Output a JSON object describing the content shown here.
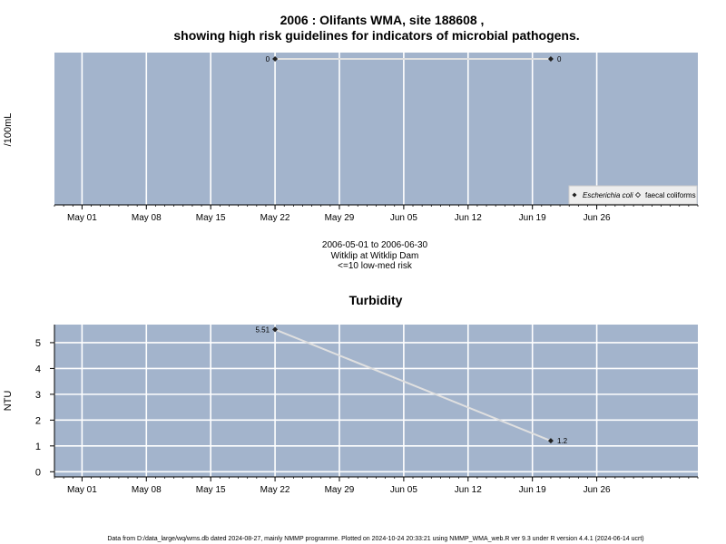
{
  "title_line1": "2006 : Olifants WMA, site 188608 ,",
  "title_line2": "showing high risk guidelines for indicators of microbial pathogens.",
  "chart_data": [
    {
      "type": "line",
      "title": "",
      "ylabel": "/100mL",
      "xlabel": "",
      "x_tick_labels": [
        "May 01",
        "May 08",
        "May 15",
        "May 22",
        "May 29",
        "Jun 05",
        "Jun 12",
        "Jun 19",
        "Jun 26"
      ],
      "x_ticks": [
        "2006-05-01",
        "2006-05-08",
        "2006-05-15",
        "2006-05-22",
        "2006-05-29",
        "2006-06-05",
        "2006-06-12",
        "2006-06-19",
        "2006-06-26"
      ],
      "xlim": [
        "2006-04-28",
        "2006-07-07"
      ],
      "y_tick_labels": [],
      "grid": true,
      "series": [
        {
          "name": "Escherichia coli",
          "x": [
            "2006-05-22",
            "2006-06-21"
          ],
          "y": [
            0,
            0
          ],
          "labels": [
            "0",
            "0"
          ]
        },
        {
          "name": "faecal coliforms",
          "x": [],
          "y": [],
          "labels": []
        }
      ],
      "legend": "bottom-right",
      "subtitle_lines": [
        "2006-05-01 to 2006-06-30",
        "Witklip at Witklip Dam",
        "<=10 low-med risk"
      ]
    },
    {
      "type": "line",
      "title": "Turbidity",
      "ylabel": "NTU",
      "xlabel": "",
      "x_tick_labels": [
        "May 01",
        "May 08",
        "May 15",
        "May 22",
        "May 29",
        "Jun 05",
        "Jun 12",
        "Jun 19",
        "Jun 26"
      ],
      "x_ticks": [
        "2006-05-01",
        "2006-05-08",
        "2006-05-15",
        "2006-05-22",
        "2006-05-29",
        "2006-06-05",
        "2006-06-12",
        "2006-06-19",
        "2006-06-26"
      ],
      "xlim": [
        "2006-04-28",
        "2006-07-07"
      ],
      "ylim": [
        -0.2,
        5.7
      ],
      "y_ticks": [
        0,
        1,
        2,
        3,
        4,
        5
      ],
      "y_tick_labels": [
        "0",
        "1",
        "2",
        "3",
        "4",
        "5"
      ],
      "grid": true,
      "series": [
        {
          "name": "",
          "x": [
            "2006-05-22",
            "2006-06-21"
          ],
          "y": [
            5.51,
            1.2
          ],
          "labels": [
            "5.51",
            "1.2"
          ]
        }
      ]
    }
  ],
  "footer": "Data from D:/data_large/wq/wms.db dated 2024-08-27, mainly NMMP programme. Plotted on 2024-10-24 20:33:21 using NMMP_WMA_web.R ver 9.3 under R version 4.4.1 (2024-06-14 ucrt)",
  "colors": {
    "panel_bg": "#a3b4cc",
    "grid": "#ffffff",
    "line": "#e0e0e0",
    "point": "#222222",
    "legend_bg": "#eeeeee"
  }
}
